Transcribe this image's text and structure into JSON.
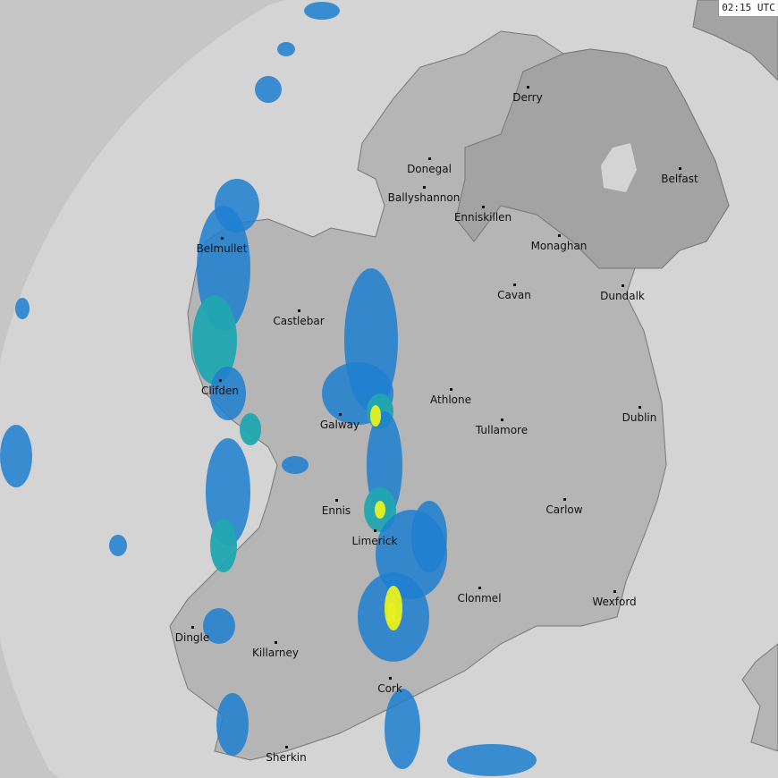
{
  "timestamp": "02:15 UTC",
  "colors": {
    "sea_outside": "#c6c6c6",
    "sea_coverage": "#d4d4d4",
    "land_roi": "#b5b5b5",
    "land_ni": "#a3a3a3",
    "rain_light": "#1e7fd0",
    "rain_moderate": "#22a6b0",
    "rain_heavy": "#e8f020"
  },
  "cities": [
    "Derry",
    "Donegal",
    "Ballyshannon",
    "Enniskillen",
    "Belfast",
    "Monaghan",
    "Belmullet",
    "Castlebar",
    "Cavan",
    "Dundalk",
    "Clifden",
    "Athlone",
    "Galway",
    "Tullamore",
    "Dublin",
    "Ennis",
    "Carlow",
    "Limerick",
    "Clonmel",
    "Wexford",
    "Dingle",
    "Killarney",
    "Cork",
    "Sherkin"
  ]
}
